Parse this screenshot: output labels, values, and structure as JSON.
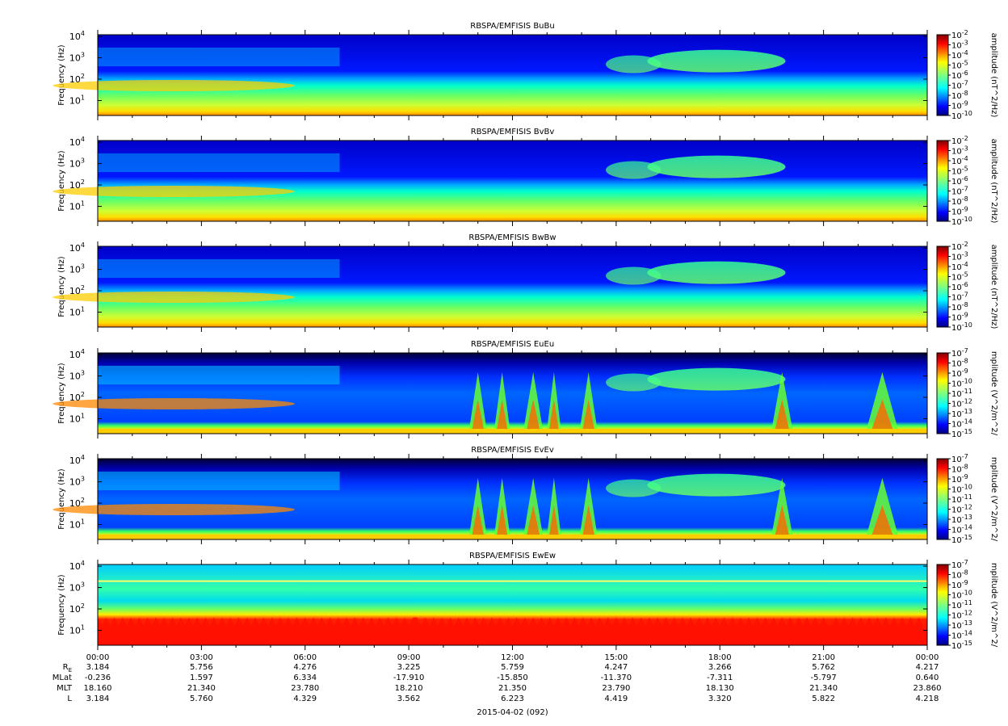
{
  "chart_data": [
    {
      "type": "heatmap",
      "title": "RBSPA/EMFISIS  BuBu",
      "ylabel": "Frequency (Hz)",
      "ylog": true,
      "ylim": [
        2,
        12000
      ],
      "yticks": [
        {
          "exp": "1",
          "value": 10
        },
        {
          "exp": "2",
          "value": 100
        },
        {
          "exp": "3",
          "value": 1000
        },
        {
          "exp": "4",
          "value": 10000
        }
      ],
      "colorbar_label": "amplitude (nT^2/Hz)",
      "colorbar_exponents": [
        "-2",
        "-3",
        "-4",
        "-5",
        "-6",
        "-7",
        "-8",
        "-9",
        "-10"
      ]
    },
    {
      "type": "heatmap",
      "title": "RBSPA/EMFISIS  BvBv",
      "ylabel": "Frequency (Hz)",
      "ylog": true,
      "ylim": [
        2,
        12000
      ],
      "yticks": [
        {
          "exp": "1",
          "value": 10
        },
        {
          "exp": "2",
          "value": 100
        },
        {
          "exp": "3",
          "value": 1000
        },
        {
          "exp": "4",
          "value": 10000
        }
      ],
      "colorbar_label": "amplitude (nT^2/Hz)",
      "colorbar_exponents": [
        "-2",
        "-3",
        "-4",
        "-5",
        "-6",
        "-7",
        "-8",
        "-9",
        "-10"
      ]
    },
    {
      "type": "heatmap",
      "title": "RBSPA/EMFISIS  BwBw",
      "ylabel": "Frequency (Hz)",
      "ylog": true,
      "ylim": [
        2,
        12000
      ],
      "yticks": [
        {
          "exp": "1",
          "value": 10
        },
        {
          "exp": "2",
          "value": 100
        },
        {
          "exp": "3",
          "value": 1000
        },
        {
          "exp": "4",
          "value": 10000
        }
      ],
      "colorbar_label": "amplitude (nT^2/Hz)",
      "colorbar_exponents": [
        "-2",
        "-3",
        "-4",
        "-5",
        "-6",
        "-7",
        "-8",
        "-9",
        "-10"
      ]
    },
    {
      "type": "heatmap",
      "title": "RBSPA/EMFISIS  EuEu",
      "ylabel": "Frequency (Hz)",
      "ylog": true,
      "ylim": [
        2,
        12000
      ],
      "yticks": [
        {
          "exp": "1",
          "value": 10
        },
        {
          "exp": "2",
          "value": 100
        },
        {
          "exp": "3",
          "value": 1000
        },
        {
          "exp": "4",
          "value": 10000
        }
      ],
      "colorbar_label": "mplitude (V^2/m^2/",
      "colorbar_exponents": [
        "-7",
        "-8",
        "-9",
        "-10",
        "-11",
        "-12",
        "-13",
        "-14",
        "-15"
      ]
    },
    {
      "type": "heatmap",
      "title": "RBSPA/EMFISIS  EvEv",
      "ylabel": "Frequency (Hz)",
      "ylog": true,
      "ylim": [
        2,
        12000
      ],
      "yticks": [
        {
          "exp": "1",
          "value": 10
        },
        {
          "exp": "2",
          "value": 100
        },
        {
          "exp": "3",
          "value": 1000
        },
        {
          "exp": "4",
          "value": 10000
        }
      ],
      "colorbar_label": "mplitude (V^2/m^2/",
      "colorbar_exponents": [
        "-7",
        "-8",
        "-9",
        "-10",
        "-11",
        "-12",
        "-13",
        "-14",
        "-15"
      ]
    },
    {
      "type": "heatmap",
      "title": "RBSPA/EMFISIS  EwEw",
      "ylabel": "Frequency (Hz)",
      "ylog": true,
      "ylim": [
        2,
        12000
      ],
      "yticks": [
        {
          "exp": "1",
          "value": 10
        },
        {
          "exp": "2",
          "value": 100
        },
        {
          "exp": "3",
          "value": 1000
        },
        {
          "exp": "4",
          "value": 10000
        }
      ],
      "colorbar_label": "mplitude (V^2/m^2/",
      "colorbar_exponents": [
        "-7",
        "-8",
        "-9",
        "-10",
        "-11",
        "-12",
        "-13",
        "-14",
        "-15"
      ]
    }
  ],
  "tick_base": "10",
  "time_axis": {
    "labels": [
      "00:00",
      "03:00",
      "06:00",
      "09:00",
      "12:00",
      "15:00",
      "18:00",
      "21:00",
      "00:00"
    ],
    "range_hours": [
      0,
      24
    ]
  },
  "ephemeris": {
    "row_labels": [
      "R",
      "MLat",
      "MLT",
      "L"
    ],
    "re_subscript": "E",
    "rows": [
      [
        "3.184",
        "5.756",
        "4.276",
        "3.225",
        "5.759",
        "4.247",
        "3.266",
        "5.762",
        "4.217"
      ],
      [
        "-0.236",
        "1.597",
        "6.334",
        "-17.910",
        "-15.850",
        "-11.370",
        "-7.311",
        "-5.797",
        "0.640"
      ],
      [
        "18.160",
        "21.340",
        "23.780",
        "18.210",
        "21.350",
        "23.790",
        "18.130",
        "21.340",
        "23.860"
      ],
      [
        "3.184",
        "5.760",
        "4.329",
        "3.562",
        "6.223",
        "4.419",
        "3.320",
        "5.822",
        "4.218"
      ]
    ]
  },
  "date_label": "2015-04-02 (092)",
  "colors": {
    "colormap": [
      "#00007f",
      "#0000ff",
      "#007fff",
      "#00ffff",
      "#7fff7f",
      "#ffff00",
      "#ff7f00",
      "#ff0000",
      "#7f0000"
    ]
  }
}
